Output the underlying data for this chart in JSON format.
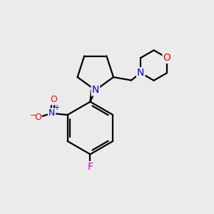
{
  "background_color": "#ebebeb",
  "atom_colors": {
    "C": "#000000",
    "N": "#0000cc",
    "O": "#ff0000",
    "F": "#cc00cc"
  },
  "bond_color": "#000000",
  "bond_width": 1.6,
  "figsize": [
    3.0,
    3.0
  ],
  "dpi": 100,
  "xlim": [
    0,
    10
  ],
  "ylim": [
    0,
    10
  ]
}
